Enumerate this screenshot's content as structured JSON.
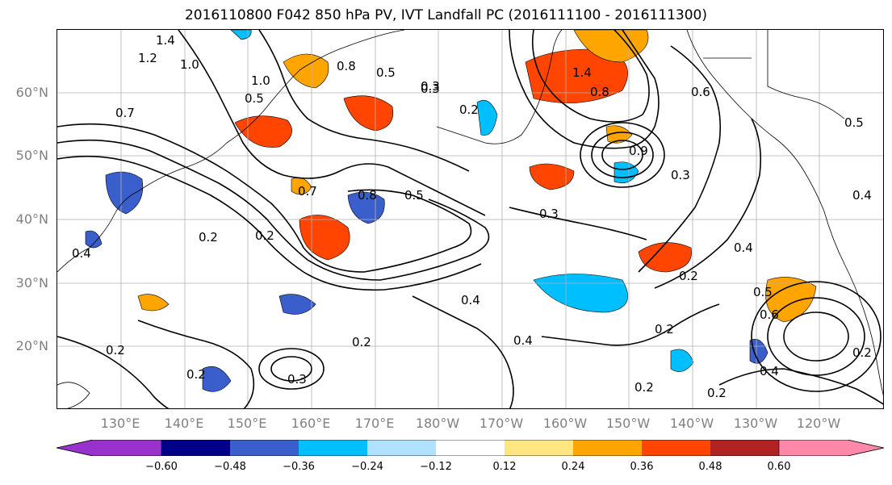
{
  "title": "2016110800 F042 850 hPa PV, IVT Landfall PC (2016111100 - 2016111300)",
  "lat_labels": [
    "60°N",
    "50°N",
    "40°N",
    "30°N",
    "20°N"
  ],
  "lon_labels": [
    "130°E",
    "140°E",
    "150°E",
    "160°E",
    "170°E",
    "180°W",
    "170°W",
    "160°W",
    "150°W",
    "140°W",
    "130°W",
    "120°W"
  ],
  "contour_labels": [
    "1.4",
    "1.2",
    "1.0",
    "1.0",
    "0.8",
    "0.5",
    "0.3",
    "0.2",
    "1.4",
    "0.8",
    "0.6",
    "0.5",
    "0.7",
    "0.5",
    "0.3",
    "0.7",
    "0.8",
    "0.5",
    "0.3",
    "0.9",
    "0.2",
    "0.2",
    "0.4",
    "0.2",
    "0.4",
    "0.4",
    "0.2",
    "0.2",
    "0.2",
    "0.3",
    "0.2",
    "0.3",
    "0.4",
    "0.2",
    "0.2",
    "0.4",
    "0.5",
    "0.6",
    "0.4",
    "0.2"
  ],
  "colorbar": {
    "tick_labels": [
      "−0.60",
      "−0.48",
      "−0.36",
      "−0.24",
      "−0.12",
      "0.12",
      "0.24",
      "0.36",
      "0.48",
      "0.60"
    ],
    "colors": [
      "#9932cc",
      "#00008b",
      "#3a5fcd",
      "#00bfff",
      "#b0e2ff",
      "#ffffff",
      "#ffe680",
      "#ffa500",
      "#ff4500",
      "#b22222",
      "#ff88aa"
    ]
  }
}
